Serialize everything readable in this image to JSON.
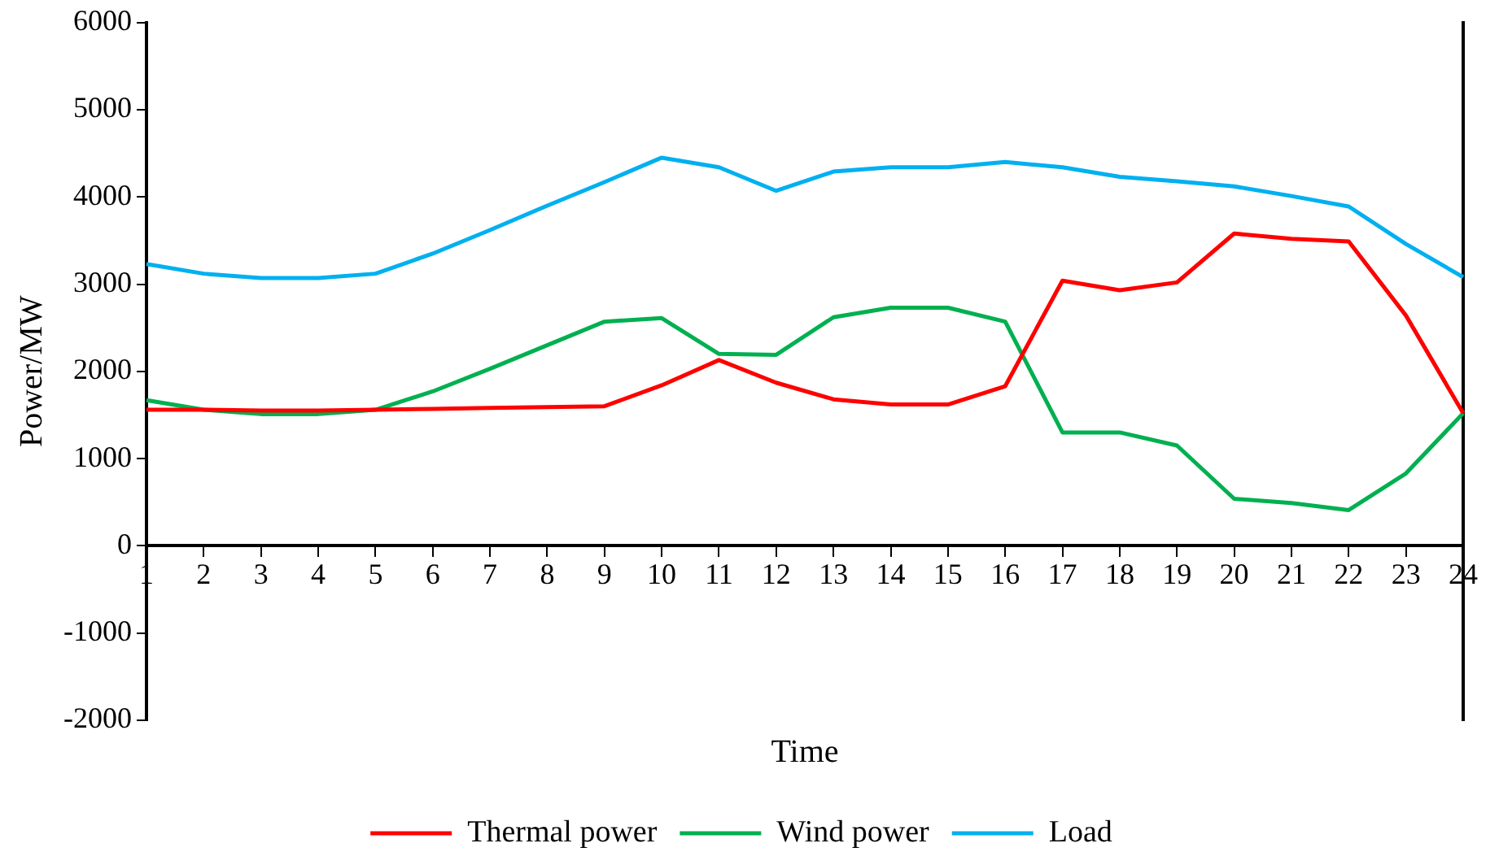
{
  "chart_data": {
    "type": "line",
    "xlabel": "Time",
    "ylabel": "Power/MW",
    "categories": [
      "1",
      "2",
      "3",
      "4",
      "5",
      "6",
      "7",
      "8",
      "9",
      "10",
      "11",
      "12",
      "13",
      "14",
      "15",
      "16",
      "17",
      "18",
      "19",
      "20",
      "21",
      "22",
      "23",
      "24"
    ],
    "series": [
      {
        "name": "Thermal power",
        "color": "#ff0000",
        "values": [
          1560,
          1560,
          1550,
          1550,
          1560,
          1570,
          1580,
          1590,
          1600,
          1840,
          2130,
          1870,
          1680,
          1620,
          1620,
          1830,
          3040,
          2930,
          3020,
          3580,
          3520,
          3490,
          2640,
          1520
        ]
      },
      {
        "name": "Wind power",
        "color": "#00b050",
        "values": [
          1670,
          1560,
          1510,
          1510,
          1560,
          1770,
          2030,
          2300,
          2570,
          2610,
          2200,
          2190,
          2620,
          2730,
          2730,
          2570,
          1300,
          1300,
          1150,
          540,
          490,
          410,
          830,
          1520
        ]
      },
      {
        "name": "Load",
        "color": "#00b0f0",
        "values": [
          3230,
          3120,
          3070,
          3070,
          3120,
          3350,
          3620,
          3900,
          4170,
          4450,
          4340,
          4070,
          4290,
          4340,
          4340,
          4400,
          4340,
          4230,
          4180,
          4120,
          4010,
          3890,
          3460,
          3080
        ]
      }
    ],
    "ylim": [
      -2000,
      6000
    ],
    "yticks": [
      -2000,
      -1000,
      0,
      1000,
      2000,
      3000,
      4000,
      5000,
      6000
    ],
    "grid": false,
    "legend": "bottom",
    "marker": "none",
    "line_style": "solid"
  }
}
